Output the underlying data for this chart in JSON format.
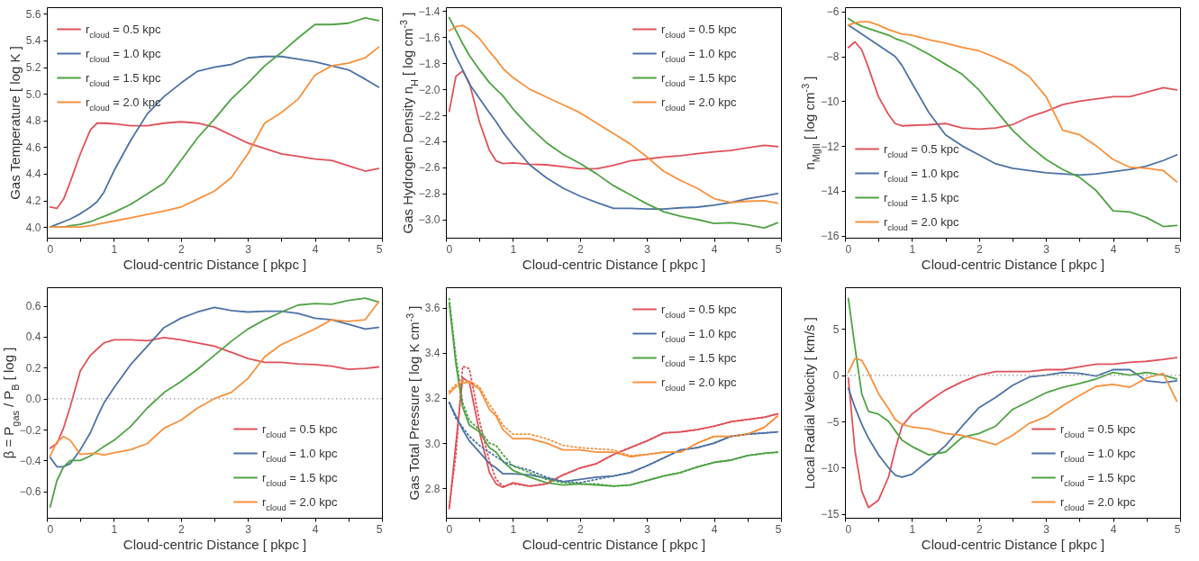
{
  "chart_data": [
    {
      "type": "line",
      "xlabel": "Cloud-centric Distance [ pkpc ]",
      "ylabel": "Gas Temperature [ log K ]",
      "legend": "top left",
      "x": [
        0.05,
        0.15,
        0.25,
        0.35,
        0.5,
        0.65,
        0.75,
        0.85,
        1.0,
        1.25,
        1.5,
        1.75,
        2.0,
        2.25,
        2.5,
        2.75,
        3.0,
        3.25,
        3.5,
        3.75,
        4.0,
        4.25,
        4.5,
        4.75,
        4.95
      ],
      "xlim": [
        0,
        5
      ],
      "xticks": [
        0,
        {
          "value": 0.5,
          "label": null
        },
        1,
        {
          "value": 1.5,
          "label": null
        },
        2,
        {
          "value": 2.5,
          "label": null
        },
        3,
        {
          "value": 3.5,
          "label": null
        },
        4,
        {
          "value": 4.5,
          "label": null
        },
        5
      ],
      "ylim": [
        3.92,
        5.65
      ],
      "yticks": [
        {
          "value": 4,
          "label": "4.0"
        },
        4.2,
        4.4,
        4.6,
        4.8,
        {
          "value": 5,
          "label": "5.0"
        },
        5.2,
        5.4,
        5.6
      ],
      "series": [
        {
          "name": "r$_{cloud}$ = 0.5 kpc",
          "color": "#e0525a",
          "values": [
            4.15,
            4.14,
            4.21,
            4.34,
            4.55,
            4.73,
            4.78,
            4.78,
            4.775,
            4.76,
            4.76,
            4.78,
            4.79,
            4.78,
            4.75,
            4.69,
            4.63,
            4.59,
            4.55,
            4.53,
            4.51,
            4.5,
            4.46,
            4.42,
            4.44
          ]
        },
        {
          "name": "r$_{cloud}$ = 1.0 kpc",
          "color": "#4c72a6",
          "values": [
            4.0,
            4.02,
            4.04,
            4.06,
            4.1,
            4.15,
            4.19,
            4.26,
            4.42,
            4.65,
            4.85,
            4.98,
            5.08,
            5.17,
            5.2,
            5.22,
            5.27,
            5.28,
            5.28,
            5.26,
            5.24,
            5.21,
            5.18,
            5.11,
            5.05
          ]
        },
        {
          "name": "r$_{cloud}$ = 1.5 kpc",
          "color": "#4ea343",
          "values": [
            4.0,
            4.0,
            4.0,
            4.01,
            4.02,
            4.04,
            4.06,
            4.08,
            4.11,
            4.17,
            4.25,
            4.33,
            4.5,
            4.67,
            4.81,
            4.96,
            5.08,
            5.21,
            5.31,
            5.42,
            5.52,
            5.52,
            5.53,
            5.57,
            5.55
          ]
        },
        {
          "name": "r$_{cloud}$ = 2.0 kpc",
          "color": "#f8913d",
          "values": [
            4.0,
            4.0,
            4.0,
            4.0,
            4.0,
            4.01,
            4.02,
            4.03,
            4.045,
            4.07,
            4.095,
            4.12,
            4.15,
            4.21,
            4.27,
            4.37,
            4.55,
            4.78,
            4.86,
            4.96,
            5.14,
            5.21,
            5.23,
            5.27,
            5.35
          ]
        }
      ]
    },
    {
      "type": "line",
      "xlabel": "Cloud-centric Distance [ pkpc ]",
      "ylabel": "Gas Hydrogen Density n$_{H}$ [ log cm$^{-3}$ ]",
      "legend": "top right",
      "x": [
        0.05,
        0.15,
        0.25,
        0.35,
        0.5,
        0.65,
        0.75,
        0.85,
        1.0,
        1.25,
        1.5,
        1.75,
        2.0,
        2.25,
        2.5,
        2.75,
        3.0,
        3.25,
        3.5,
        3.75,
        4.0,
        4.25,
        4.5,
        4.75,
        4.95
      ],
      "xlim": [
        0,
        5
      ],
      "xticks": [
        0,
        {
          "value": 0.5,
          "label": null
        },
        1,
        {
          "value": 1.5,
          "label": null
        },
        2,
        {
          "value": 2.5,
          "label": null
        },
        3,
        {
          "value": 3.5,
          "label": null
        },
        4,
        {
          "value": 4.5,
          "label": null
        },
        5
      ],
      "ylim": [
        -3.14,
        -1.37
      ],
      "yticks": [
        {
          "value": -3,
          "label": "−3.0"
        },
        {
          "value": -2.8,
          "label": "−2.8"
        },
        {
          "value": -2.6,
          "label": "−2.6"
        },
        {
          "value": -2.4,
          "label": "−2.4"
        },
        {
          "value": -2.2,
          "label": "−2.2"
        },
        {
          "value": -2,
          "label": "−2.0"
        },
        {
          "value": -1.8,
          "label": "−1.8"
        },
        {
          "value": -1.6,
          "label": "−1.6"
        },
        {
          "value": -1.4,
          "label": "−1.4"
        }
      ],
      "series": [
        {
          "name": "r$_{cloud}$ = 0.5 kpc",
          "color": "#e0525a",
          "values": [
            -2.17,
            -1.9,
            -1.86,
            -1.95,
            -2.25,
            -2.47,
            -2.55,
            -2.57,
            -2.565,
            -2.575,
            -2.58,
            -2.595,
            -2.61,
            -2.61,
            -2.585,
            -2.55,
            -2.535,
            -2.52,
            -2.51,
            -2.495,
            -2.48,
            -2.47,
            -2.45,
            -2.43,
            -2.44
          ]
        },
        {
          "name": "r$_{cloud}$ = 1.0 kpc",
          "color": "#4c72a6",
          "values": [
            -1.63,
            -1.75,
            -1.85,
            -1.96,
            -2.07,
            -2.18,
            -2.25,
            -2.33,
            -2.43,
            -2.58,
            -2.68,
            -2.76,
            -2.82,
            -2.87,
            -2.915,
            -2.915,
            -2.92,
            -2.92,
            -2.91,
            -2.905,
            -2.89,
            -2.87,
            -2.84,
            -2.82,
            -2.8
          ]
        },
        {
          "name": "r$_{cloud}$ = 1.5 kpc",
          "color": "#4ea343",
          "values": [
            -1.45,
            -1.55,
            -1.65,
            -1.74,
            -1.85,
            -1.95,
            -2.0,
            -2.05,
            -2.15,
            -2.29,
            -2.41,
            -2.5,
            -2.57,
            -2.65,
            -2.74,
            -2.81,
            -2.88,
            -2.94,
            -2.975,
            -3.0,
            -3.03,
            -3.025,
            -3.04,
            -3.065,
            -3.025
          ]
        },
        {
          "name": "r$_{cloud}$ = 2.0 kpc",
          "color": "#f8913d",
          "values": [
            -1.55,
            -1.52,
            -1.51,
            -1.54,
            -1.61,
            -1.71,
            -1.77,
            -1.84,
            -1.91,
            -2.0,
            -2.06,
            -2.12,
            -2.18,
            -2.26,
            -2.34,
            -2.42,
            -2.52,
            -2.63,
            -2.7,
            -2.76,
            -2.84,
            -2.87,
            -2.86,
            -2.855,
            -2.875
          ]
        }
      ]
    },
    {
      "type": "line",
      "xlabel": "Cloud-centric Distance [ pkpc ]",
      "ylabel": "n$_{MgII}$ [ log cm$^{-3}$ ]",
      "legend": "bottom left",
      "x": [
        0.05,
        0.15,
        0.25,
        0.35,
        0.5,
        0.65,
        0.75,
        0.85,
        1.0,
        1.25,
        1.5,
        1.75,
        2.0,
        2.25,
        2.5,
        2.75,
        3.0,
        3.25,
        3.5,
        3.75,
        4.0,
        4.25,
        4.5,
        4.75,
        4.95
      ],
      "xlim": [
        0,
        5
      ],
      "xticks": [
        0,
        {
          "value": 0.5,
          "label": null
        },
        1,
        {
          "value": 1.5,
          "label": null
        },
        2,
        {
          "value": 2.5,
          "label": null
        },
        3,
        {
          "value": 3.5,
          "label": null
        },
        4,
        {
          "value": 4.5,
          "label": null
        },
        5
      ],
      "ylim": [
        -16.1,
        -5.8
      ],
      "yticks": [
        {
          "value": -16,
          "label": "−16"
        },
        {
          "value": -14,
          "label": "−14"
        },
        {
          "value": -12,
          "label": "−12"
        },
        {
          "value": -10,
          "label": "−10"
        },
        {
          "value": -8,
          "label": "−8"
        },
        {
          "value": -6,
          "label": "−6"
        }
      ],
      "series": [
        {
          "name": "r$_{cloud}$ = 0.5 kpc",
          "color": "#e0525a",
          "values": [
            -7.6,
            -7.35,
            -7.7,
            -8.5,
            -9.8,
            -10.6,
            -11.0,
            -11.1,
            -11.08,
            -11.05,
            -11.0,
            -11.2,
            -11.25,
            -11.2,
            -11.05,
            -10.7,
            -10.45,
            -10.15,
            -10.0,
            -9.9,
            -9.8,
            -9.8,
            -9.6,
            -9.4,
            -9.5
          ]
        },
        {
          "name": "r$_{cloud}$ = 1.0 kpc",
          "color": "#4c72a6",
          "values": [
            -6.6,
            -6.8,
            -7.0,
            -7.2,
            -7.5,
            -7.8,
            -8.0,
            -8.4,
            -9.2,
            -10.5,
            -11.5,
            -12.0,
            -12.4,
            -12.8,
            -13.0,
            -13.1,
            -13.2,
            -13.25,
            -13.3,
            -13.25,
            -13.15,
            -13.05,
            -12.9,
            -12.65,
            -12.4
          ]
        },
        {
          "name": "r$_{cloud}$ = 1.5 kpc",
          "color": "#4ea343",
          "values": [
            -6.3,
            -6.5,
            -6.65,
            -6.75,
            -6.9,
            -7.05,
            -7.2,
            -7.3,
            -7.5,
            -7.9,
            -8.35,
            -8.8,
            -9.5,
            -10.4,
            -11.3,
            -12.0,
            -12.6,
            -13.05,
            -13.4,
            -14.0,
            -14.9,
            -14.95,
            -15.2,
            -15.6,
            -15.55
          ]
        },
        {
          "name": "r$_{cloud}$ = 2.0 kpc",
          "color": "#f8913d",
          "values": [
            -6.6,
            -6.5,
            -6.45,
            -6.45,
            -6.6,
            -6.8,
            -6.9,
            -7.0,
            -7.05,
            -7.25,
            -7.4,
            -7.6,
            -7.75,
            -8.05,
            -8.4,
            -8.9,
            -9.8,
            -11.3,
            -11.5,
            -12.0,
            -12.6,
            -12.95,
            -13.0,
            -13.1,
            -13.6
          ]
        }
      ]
    },
    {
      "type": "line",
      "xlabel": "Cloud-centric Distance [ pkpc ]",
      "ylabel": "β = P$_{gas}$ / P$_{B}$ [ log ]",
      "legend": "bottom right",
      "x": [
        0.05,
        0.15,
        0.25,
        0.35,
        0.5,
        0.65,
        0.75,
        0.85,
        1.0,
        1.25,
        1.5,
        1.75,
        2.0,
        2.25,
        2.5,
        2.75,
        3.0,
        3.25,
        3.5,
        3.75,
        4.0,
        4.25,
        4.5,
        4.75,
        4.95
      ],
      "xlim": [
        0,
        5
      ],
      "xticks": [
        0,
        {
          "value": 0.5,
          "label": null
        },
        1,
        {
          "value": 1.5,
          "label": null
        },
        2,
        {
          "value": 2.5,
          "label": null
        },
        3,
        {
          "value": 3.5,
          "label": null
        },
        4,
        {
          "value": 4.5,
          "label": null
        },
        5
      ],
      "ylim": [
        -0.77,
        0.72
      ],
      "yticks": [
        {
          "value": -0.6,
          "label": "−0.6"
        },
        {
          "value": -0.4,
          "label": "−0.4"
        },
        {
          "value": -0.2,
          "label": "−0.2"
        },
        {
          "value": 0,
          "label": "0.0"
        },
        0.2,
        0.4,
        0.6
      ],
      "ref_lines": [
        {
          "axis": "y",
          "value": 0,
          "color": "#aaaaaa",
          "line_style": "dotted"
        }
      ],
      "series": [
        {
          "name": "r$_{cloud}$ = 0.5 kpc",
          "color": "#e0525a",
          "values": [
            -0.32,
            -0.29,
            -0.19,
            -0.05,
            0.18,
            0.28,
            0.32,
            0.36,
            0.38,
            0.38,
            0.375,
            0.395,
            0.38,
            0.36,
            0.34,
            0.3,
            0.26,
            0.235,
            0.235,
            0.225,
            0.22,
            0.21,
            0.19,
            0.195,
            0.205
          ]
        },
        {
          "name": "r$_{cloud}$ = 1.0 kpc",
          "color": "#4c72a6",
          "values": [
            -0.38,
            -0.44,
            -0.44,
            -0.42,
            -0.33,
            -0.22,
            -0.12,
            -0.03,
            0.07,
            0.22,
            0.34,
            0.46,
            0.52,
            0.56,
            0.59,
            0.57,
            0.56,
            0.565,
            0.565,
            0.55,
            0.52,
            0.51,
            0.48,
            0.45,
            0.46
          ]
        },
        {
          "name": "r$_{cloud}$ = 1.5 kpc",
          "color": "#4ea343",
          "values": [
            -0.7,
            -0.53,
            -0.44,
            -0.4,
            -0.4,
            -0.37,
            -0.34,
            -0.31,
            -0.27,
            -0.18,
            -0.06,
            0.04,
            0.11,
            0.19,
            0.28,
            0.37,
            0.45,
            0.51,
            0.56,
            0.605,
            0.615,
            0.61,
            0.635,
            0.65,
            0.625
          ]
        },
        {
          "name": "r$_{cloud}$ = 2.0 kpc",
          "color": "#f8913d",
          "values": [
            -0.37,
            -0.28,
            -0.245,
            -0.27,
            -0.36,
            -0.355,
            -0.355,
            -0.365,
            -0.35,
            -0.33,
            -0.29,
            -0.19,
            -0.14,
            -0.06,
            0.0,
            0.04,
            0.13,
            0.27,
            0.35,
            0.4,
            0.45,
            0.51,
            0.5,
            0.51,
            0.625
          ]
        }
      ]
    },
    {
      "type": "line",
      "xlabel": "Cloud-centric Distance [ pkpc ]",
      "ylabel": "Gas Total Pressure [ log K cm$^{-3}$ ]",
      "legend": "top right",
      "x": [
        0.05,
        0.15,
        0.25,
        0.35,
        0.5,
        0.65,
        0.75,
        0.85,
        1.0,
        1.25,
        1.5,
        1.75,
        2.0,
        2.25,
        2.5,
        2.75,
        3.0,
        3.25,
        3.5,
        3.75,
        4.0,
        4.25,
        4.5,
        4.75,
        4.95
      ],
      "xlim": [
        0,
        5
      ],
      "xticks": [
        0,
        {
          "value": 0.5,
          "label": null
        },
        1,
        {
          "value": 1.5,
          "label": null
        },
        2,
        {
          "value": 2.5,
          "label": null
        },
        3,
        {
          "value": 3.5,
          "label": null
        },
        4,
        {
          "value": 4.5,
          "label": null
        },
        5
      ],
      "ylim": [
        2.67,
        3.69
      ],
      "yticks": [
        2.8,
        {
          "value": 3,
          "label": "3.0"
        },
        3.2,
        3.4,
        3.6
      ],
      "series": [
        {
          "name": "r$_{cloud}$ = 0.5 kpc",
          "color": "#e0525a",
          "values": [
            2.71,
            3.0,
            3.29,
            3.27,
            3.05,
            2.87,
            2.82,
            2.805,
            2.825,
            2.81,
            2.82,
            2.86,
            2.89,
            2.91,
            2.95,
            2.98,
            3.01,
            3.045,
            3.05,
            3.06,
            3.075,
            3.095,
            3.105,
            3.115,
            3.13
          ]
        },
        {
          "name": "r$_{cloud}$ = 1.0 kpc",
          "color": "#4c72a6",
          "values": [
            3.18,
            3.12,
            3.06,
            3.01,
            2.96,
            2.91,
            2.89,
            2.865,
            2.865,
            2.86,
            2.845,
            2.83,
            2.84,
            2.85,
            2.855,
            2.87,
            2.9,
            2.935,
            2.97,
            2.98,
            3.0,
            3.03,
            3.04,
            3.045,
            3.05
          ]
        },
        {
          "name": "r$_{cloud}$ = 1.5 kpc",
          "color": "#4ea343",
          "values": [
            3.62,
            3.35,
            3.16,
            3.08,
            3.05,
            2.98,
            2.96,
            2.92,
            2.88,
            2.85,
            2.825,
            2.815,
            2.82,
            2.815,
            2.81,
            2.815,
            2.835,
            2.855,
            2.87,
            2.895,
            2.915,
            2.925,
            2.945,
            2.955,
            2.96
          ]
        },
        {
          "name": "r$_{cloud}$ = 2.0 kpc",
          "color": "#f8913d",
          "values": [
            3.22,
            3.25,
            3.265,
            3.27,
            3.24,
            3.15,
            3.12,
            3.06,
            3.02,
            3.02,
            3.0,
            2.97,
            2.97,
            2.96,
            2.96,
            2.94,
            2.95,
            2.96,
            2.96,
            3.0,
            3.03,
            3.03,
            3.04,
            3.07,
            3.12
          ]
        },
        {
          "color": "#e0525a",
          "line_style": "dotted",
          "values": [
            2.72,
            2.95,
            3.34,
            3.33,
            3.1,
            2.92,
            2.84,
            2.81,
            2.82,
            2.81,
            2.82,
            2.86,
            2.89,
            2.91,
            2.95,
            2.98,
            3.01,
            3.045,
            3.05,
            3.06,
            3.075,
            3.095,
            3.105,
            3.115,
            3.13
          ]
        },
        {
          "color": "#4c72a6",
          "line_style": "dotted",
          "values": [
            3.18,
            3.11,
            3.07,
            3.03,
            2.99,
            2.96,
            2.94,
            2.92,
            2.9,
            2.88,
            2.85,
            2.83,
            2.825,
            2.84,
            2.855,
            2.87,
            2.9,
            2.935,
            2.97,
            2.98,
            3.0,
            3.03,
            3.04,
            3.045,
            3.05
          ]
        },
        {
          "color": "#4ea343",
          "line_style": "dotted",
          "values": [
            3.64,
            3.38,
            3.18,
            3.1,
            3.06,
            3.0,
            2.99,
            2.95,
            2.9,
            2.87,
            2.84,
            2.825,
            2.82,
            2.82,
            2.81,
            2.815,
            2.835,
            2.855,
            2.87,
            2.895,
            2.915,
            2.925,
            2.945,
            2.955,
            2.96
          ]
        },
        {
          "color": "#f8913d",
          "line_style": "dotted",
          "values": [
            3.23,
            3.26,
            3.275,
            3.275,
            3.25,
            3.17,
            3.13,
            3.08,
            3.04,
            3.04,
            3.02,
            2.99,
            2.98,
            2.975,
            2.97,
            2.945,
            2.95,
            2.96,
            2.96,
            3.0,
            3.03,
            3.03,
            3.04,
            3.07,
            3.12
          ]
        }
      ]
    },
    {
      "type": "line",
      "xlabel": "Cloud-centric Distance [ pkpc ]",
      "ylabel": "Local Radial Velocity [ km/s ]",
      "legend": "bottom right",
      "x": [
        0.05,
        0.15,
        0.25,
        0.35,
        0.5,
        0.65,
        0.75,
        0.85,
        1.0,
        1.25,
        1.5,
        1.75,
        2.0,
        2.25,
        2.5,
        2.75,
        3.0,
        3.25,
        3.5,
        3.75,
        4.0,
        4.25,
        4.5,
        4.75,
        4.95
      ],
      "xlim": [
        0,
        5
      ],
      "xticks": [
        0,
        {
          "value": 0.5,
          "label": null
        },
        1,
        {
          "value": 1.5,
          "label": null
        },
        2,
        {
          "value": 2.5,
          "label": null
        },
        3,
        {
          "value": 3.5,
          "label": null
        },
        4,
        {
          "value": 4.5,
          "label": null
        },
        5
      ],
      "ylim": [
        -15.4,
        9.5
      ],
      "yticks": [
        {
          "value": -15,
          "label": "−15"
        },
        {
          "value": -10,
          "label": "−10"
        },
        {
          "value": -5,
          "label": "−5"
        },
        0,
        5
      ],
      "ref_lines": [
        {
          "axis": "y",
          "value": 0,
          "color": "#aaaaaa",
          "line_style": "dotted"
        }
      ],
      "series": [
        {
          "name": "r$_{cloud}$ = 0.5 kpc",
          "color": "#e0525a",
          "values": [
            -0.3,
            -8.2,
            -12.5,
            -14.3,
            -13.5,
            -11.0,
            -8.0,
            -5.5,
            -4.2,
            -2.8,
            -1.6,
            -0.7,
            0.0,
            0.4,
            0.4,
            0.4,
            0.6,
            0.6,
            0.9,
            1.2,
            1.2,
            1.4,
            1.5,
            1.7,
            1.9
          ]
        },
        {
          "name": "r$_{cloud}$ = 1.0 kpc",
          "color": "#4c72a6",
          "values": [
            -1.4,
            -3.5,
            -5.3,
            -6.8,
            -8.6,
            -10.0,
            -10.8,
            -11.0,
            -10.7,
            -9.2,
            -7.6,
            -5.5,
            -3.5,
            -2.4,
            -1.1,
            -0.2,
            0.0,
            0.3,
            0.2,
            -0.1,
            0.6,
            0.6,
            -0.6,
            -0.8,
            -0.6
          ]
        },
        {
          "name": "r$_{cloud}$ = 1.5 kpc",
          "color": "#4ea343",
          "values": [
            8.3,
            3.0,
            -2.0,
            -3.9,
            -4.2,
            -5.0,
            -6.0,
            -7.0,
            -7.7,
            -8.6,
            -8.3,
            -6.7,
            -6.3,
            -5.5,
            -3.7,
            -2.8,
            -1.9,
            -1.3,
            -0.9,
            -0.4,
            0.3,
            0.0,
            0.3,
            0.0,
            -0.4
          ]
        },
        {
          "name": "r$_{cloud}$ = 2.0 kpc",
          "color": "#f8913d",
          "values": [
            0.3,
            1.8,
            1.6,
            0.3,
            -2.0,
            -3.6,
            -4.8,
            -5.3,
            -5.6,
            -5.8,
            -6.3,
            -6.5,
            -7.0,
            -7.5,
            -6.5,
            -5.2,
            -4.5,
            -3.3,
            -2.2,
            -1.2,
            -1.0,
            -1.3,
            -0.3,
            0.2,
            -2.8
          ]
        }
      ]
    }
  ]
}
